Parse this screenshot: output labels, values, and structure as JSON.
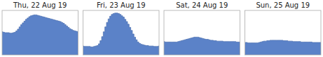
{
  "chart_data": [
    {
      "type": "area",
      "title": "Thu, 22 Aug 19",
      "color": "#5B82C8",
      "ylim": [
        0,
        1.0
      ],
      "tick_labels": false,
      "values": [
        0.52,
        0.51,
        0.5,
        0.5,
        0.5,
        0.49,
        0.49,
        0.5,
        0.51,
        0.54,
        0.58,
        0.63,
        0.68,
        0.72,
        0.76,
        0.8,
        0.83,
        0.86,
        0.88,
        0.89,
        0.9,
        0.9,
        0.89,
        0.88,
        0.87,
        0.86,
        0.85,
        0.84,
        0.83,
        0.82,
        0.81,
        0.8,
        0.79,
        0.78,
        0.77,
        0.76,
        0.75,
        0.73,
        0.71,
        0.68,
        0.65,
        0.62,
        0.59,
        0.57,
        0.55,
        0.54,
        0.53,
        0.52
      ]
    },
    {
      "type": "area",
      "title": "Fri, 23 Aug 19",
      "color": "#5B82C8",
      "ylim": [
        0,
        1.0
      ],
      "tick_labels": false,
      "values": [
        0.2,
        0.19,
        0.19,
        0.19,
        0.19,
        0.18,
        0.18,
        0.19,
        0.2,
        0.21,
        0.25,
        0.32,
        0.41,
        0.52,
        0.63,
        0.73,
        0.81,
        0.87,
        0.91,
        0.93,
        0.94,
        0.94,
        0.93,
        0.91,
        0.88,
        0.85,
        0.8,
        0.75,
        0.69,
        0.62,
        0.55,
        0.47,
        0.4,
        0.34,
        0.29,
        0.26,
        0.24,
        0.23,
        0.22,
        0.21,
        0.21,
        0.2,
        0.2,
        0.2,
        0.19,
        0.19,
        0.19,
        0.2
      ]
    },
    {
      "type": "area",
      "title": "Sat, 24 Aug 19",
      "color": "#5B82C8",
      "ylim": [
        0,
        1.0
      ],
      "tick_labels": false,
      "values": [
        0.3,
        0.29,
        0.29,
        0.29,
        0.29,
        0.29,
        0.29,
        0.29,
        0.29,
        0.3,
        0.31,
        0.32,
        0.33,
        0.34,
        0.35,
        0.36,
        0.37,
        0.38,
        0.39,
        0.4,
        0.4,
        0.4,
        0.39,
        0.38,
        0.37,
        0.36,
        0.35,
        0.35,
        0.34,
        0.33,
        0.33,
        0.32,
        0.32,
        0.31,
        0.31,
        0.31,
        0.31,
        0.3,
        0.3,
        0.3,
        0.3,
        0.3,
        0.3,
        0.3,
        0.3,
        0.29,
        0.29,
        0.29
      ]
    },
    {
      "type": "area",
      "title": "Sun, 25 Aug 19",
      "color": "#5B82C8",
      "ylim": [
        0,
        1.0
      ],
      "tick_labels": false,
      "values": [
        0.28,
        0.28,
        0.27,
        0.27,
        0.27,
        0.27,
        0.27,
        0.27,
        0.27,
        0.28,
        0.29,
        0.3,
        0.31,
        0.31,
        0.32,
        0.32,
        0.33,
        0.33,
        0.33,
        0.33,
        0.33,
        0.33,
        0.33,
        0.33,
        0.32,
        0.32,
        0.32,
        0.31,
        0.31,
        0.31,
        0.3,
        0.3,
        0.3,
        0.3,
        0.3,
        0.29,
        0.29,
        0.29,
        0.29,
        0.29,
        0.29,
        0.29,
        0.28,
        0.28,
        0.28,
        0.28,
        0.28,
        0.28
      ]
    }
  ]
}
